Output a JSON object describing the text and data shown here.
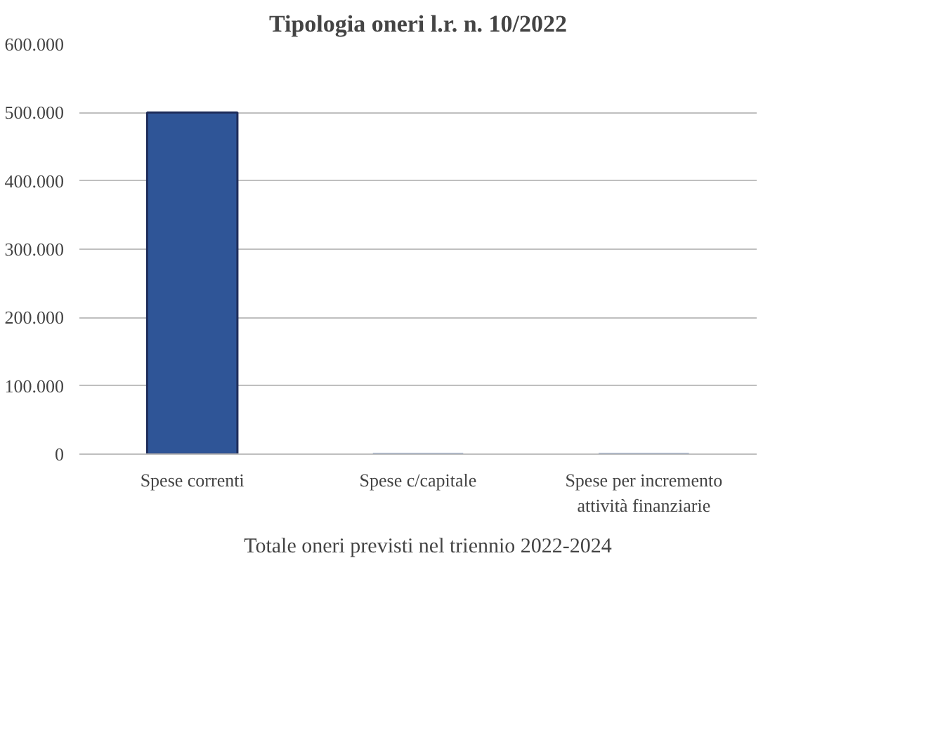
{
  "chart_data": {
    "type": "bar",
    "title": "Tipologia oneri l.r. n. 10/2022",
    "categories": [
      "Spese correnti",
      "Spese c/capitale",
      "Spese per incremento attività finanziarie"
    ],
    "series": [
      {
        "name": "Totale oneri previsti nel triennio 2022-2024",
        "color": "#2f5597",
        "values": [
          500000,
          0,
          0
        ]
      }
    ],
    "ylim": [
      0,
      600000
    ],
    "yticks": [
      {
        "value": 0,
        "label": "0"
      },
      {
        "value": 100000,
        "label": "100.000"
      },
      {
        "value": 200000,
        "label": "200.000"
      },
      {
        "value": 300000,
        "label": "300.000"
      },
      {
        "value": 400000,
        "label": "400.000"
      },
      {
        "value": 500000,
        "label": "500.000"
      },
      {
        "value": 600000,
        "label": "600.000"
      }
    ],
    "grid": "y",
    "legend": "bottom"
  }
}
